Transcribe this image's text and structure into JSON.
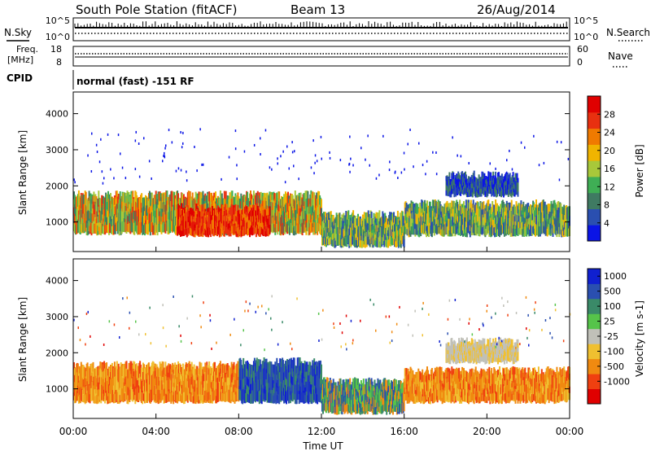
{
  "header": {
    "station": "South Pole Station (fitACF)",
    "beam": "Beam 13",
    "date": "26/Aug/2014"
  },
  "status_panels": {
    "nsky_label": "N.Sky",
    "nsearch_label": "N.Search",
    "noise_ticks": [
      "10^5",
      "10^0"
    ],
    "freq_label_1": "Freq.",
    "freq_label_2": "[MHz]",
    "freq_ticks": [
      "18",
      "8"
    ],
    "nave_label": "Nave",
    "nave_ticks": [
      "60",
      "0"
    ],
    "cpid_label": "CPID",
    "cpid_text": "normal (fast) -151 RF"
  },
  "colors": {
    "power_scale": [
      "#0a14e6",
      "#2a4fb0",
      "#3f7a62",
      "#3fae55",
      "#a8c83a",
      "#f0b400",
      "#f07a00",
      "#e83010",
      "#e00000"
    ],
    "velocity_scale": [
      "#e00000",
      "#f04010",
      "#f08a10",
      "#f0c030",
      "#c0c0b8",
      "#56c44a",
      "#3a8a68",
      "#2a4fb0",
      "#1020d0"
    ]
  },
  "chart_data": [
    {
      "type": "heatmap",
      "panel": "power",
      "ylabel": "Slant Range [km]",
      "y_ticks": [
        "1000",
        "2000",
        "3000",
        "4000"
      ],
      "ylim": [
        180,
        4600
      ],
      "colorbar_label": "Power [dB]",
      "colorbar_ticks": [
        "4",
        "8",
        "12",
        "16",
        "20",
        "24",
        "28"
      ],
      "bands": [
        {
          "t0": 0.0,
          "t1": 12.0,
          "y0": 700,
          "y1": 1750,
          "level": "strong"
        },
        {
          "t0": 5.0,
          "t1": 9.5,
          "y0": 650,
          "y1": 1400,
          "level": "max"
        },
        {
          "t0": 12.0,
          "t1": 16.0,
          "y0": 350,
          "y1": 1200,
          "level": "medium"
        },
        {
          "t0": 16.0,
          "t1": 24.0,
          "y0": 650,
          "y1": 1500,
          "level": "medium"
        },
        {
          "t0": 18.0,
          "t1": 21.5,
          "y0": 1750,
          "y1": 2300,
          "level": "weak"
        }
      ]
    },
    {
      "type": "heatmap",
      "panel": "velocity",
      "xlabel": "Time UT",
      "x_ticks": [
        "00:00",
        "04:00",
        "08:00",
        "12:00",
        "16:00",
        "20:00",
        "00:00"
      ],
      "ylabel": "Slant Range [km]",
      "y_ticks": [
        "1000",
        "2000",
        "3000",
        "4000"
      ],
      "ylim": [
        180,
        4600
      ],
      "colorbar_label": "Velocity [m s-1]",
      "colorbar_ticks": [
        "1000",
        "500",
        "100",
        "25",
        "-25",
        "-100",
        "-500",
        "-1000"
      ],
      "bands": [
        {
          "t0": 0.0,
          "t1": 8.0,
          "y0": 650,
          "y1": 1650,
          "level": "away"
        },
        {
          "t0": 8.0,
          "t1": 12.0,
          "y0": 650,
          "y1": 1750,
          "level": "toward"
        },
        {
          "t0": 12.0,
          "t1": 16.0,
          "y0": 350,
          "y1": 1200,
          "level": "mixed"
        },
        {
          "t0": 16.0,
          "t1": 24.0,
          "y0": 650,
          "y1": 1500,
          "level": "away"
        },
        {
          "t0": 18.0,
          "t1": 21.5,
          "y0": 1750,
          "y1": 2300,
          "level": "zero"
        }
      ]
    }
  ]
}
